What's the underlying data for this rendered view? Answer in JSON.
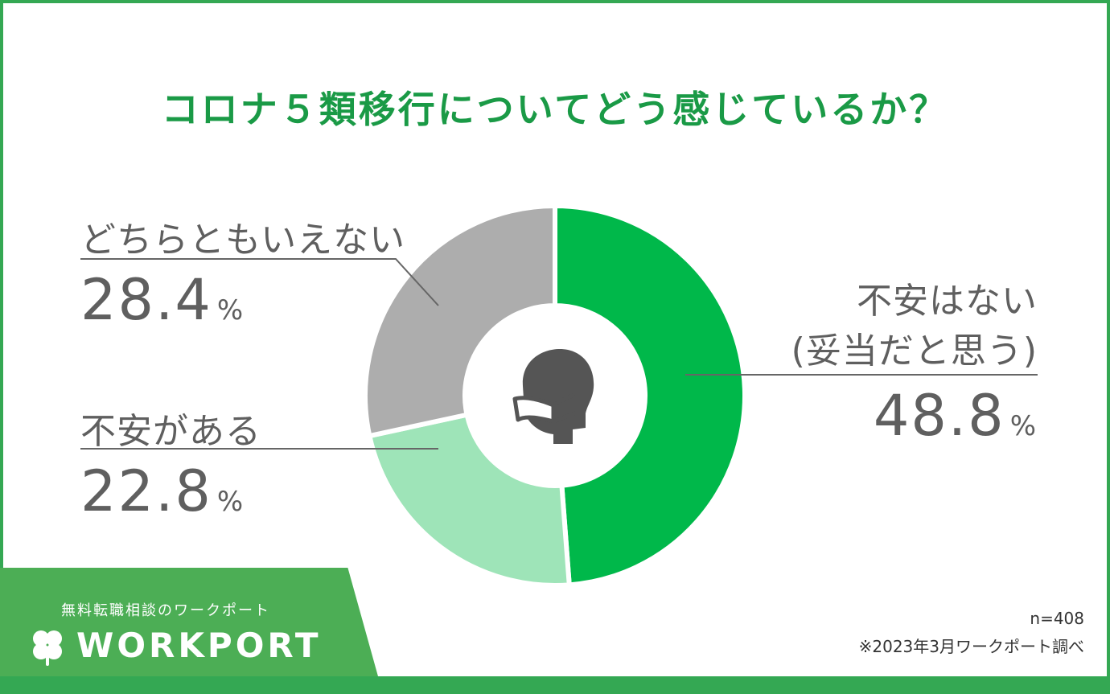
{
  "header": {
    "title": "コロナ５類移行についてどう感じているか？"
  },
  "chart_data": {
    "type": "pie",
    "title": "コロナ５類移行についてどう感じているか？",
    "categories": [
      "不安はない(妥当だと思う)",
      "不安がある",
      "どちらともいえない"
    ],
    "values": [
      48.8,
      22.8,
      28.4
    ],
    "value_labels": [
      "48.8",
      "22.8",
      "28.4"
    ],
    "unit": "%",
    "colors": [
      "#00b84a",
      "#9ee4b8",
      "#adadad"
    ],
    "donut": true,
    "center_icon": "mask-face-icon",
    "sample": "n=408",
    "source": "※2023年3月ワークポート調べ"
  },
  "labels": {
    "neutral": "どちらともいえない",
    "no_anxiety_line1": "不安はない",
    "no_anxiety_line2": "(妥当だと思う)",
    "anxiety": "不安がある"
  },
  "brand": {
    "tagline": "無料転職相談のワークポート",
    "logo_text": "WORKPORT",
    "logo_icon": "clover-icon",
    "color": "#4cae55"
  }
}
